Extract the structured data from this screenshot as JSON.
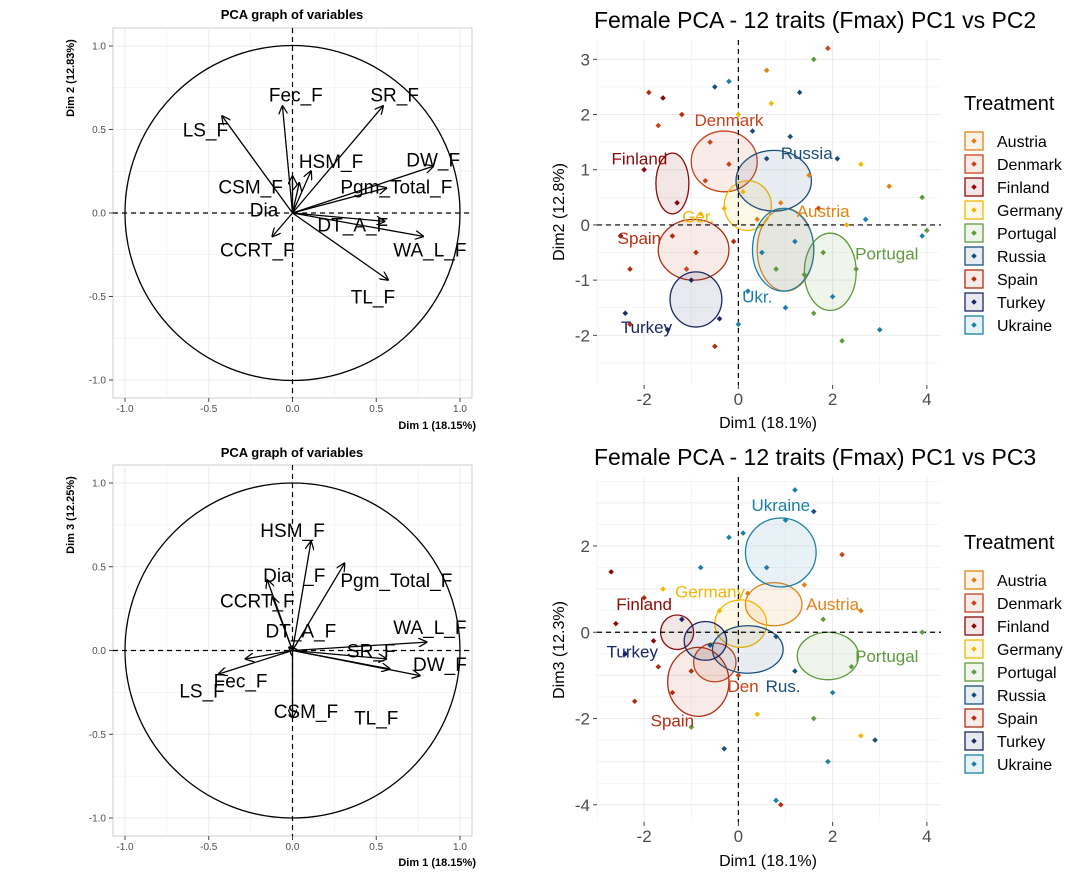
{
  "colors": {
    "Austria": "#E08214",
    "Denmark": "#C8421A",
    "Finland": "#8B0A0A",
    "Germany": "#F2B705",
    "Portugal": "#5F9A3C",
    "Russia": "#1A4E7A",
    "Spain": "#B22D12",
    "Turkey": "#1B2766",
    "Ukraine": "#1A7FA8"
  },
  "chart_data": [
    {
      "type": "vector",
      "title": "PCA graph of variables",
      "xlabel": "Dim 1 (18.15%)",
      "ylabel": "Dim 2 (12.83%)",
      "xlim": [
        -1.0,
        1.0
      ],
      "ylim": [
        -1.0,
        1.0
      ],
      "xticks": [
        "-1.0",
        "-0.5",
        "0.0",
        "0.5",
        "1.0"
      ],
      "yticks": [
        "-1.0",
        "-0.5",
        "0.0",
        "0.5",
        "1.0"
      ],
      "grid": true,
      "vectors": [
        {
          "name": "Fec_F",
          "x": -0.06,
          "y": 0.64
        },
        {
          "name": "SR_F",
          "x": 0.54,
          "y": 0.64
        },
        {
          "name": "LS_F",
          "x": -0.42,
          "y": 0.58
        },
        {
          "name": "HSM_F",
          "x": 0.11,
          "y": 0.25
        },
        {
          "name": "DW_F",
          "x": 0.84,
          "y": 0.28
        },
        {
          "name": "CSM_F",
          "x": 0.0,
          "y": 0.22
        },
        {
          "name": "Pgm_Total_F",
          "x": 0.56,
          "y": 0.15
        },
        {
          "name": "Dia_F",
          "x": 0.04,
          "y": 0.18
        },
        {
          "name": "DT_A_F",
          "x": 0.55,
          "y": -0.05
        },
        {
          "name": "CCRT_F",
          "x": -0.12,
          "y": -0.14
        },
        {
          "name": "WA_L_F",
          "x": 0.78,
          "y": -0.14
        },
        {
          "name": "TL_F",
          "x": 0.57,
          "y": -0.4
        }
      ],
      "labels": [
        {
          "text": "Fec_F",
          "x": 0.02,
          "y": 0.71
        },
        {
          "text": "SR_F",
          "x": 0.61,
          "y": 0.71
        },
        {
          "text": "LS_F",
          "x": -0.52,
          "y": 0.5
        },
        {
          "text": "HSM_F",
          "x": 0.23,
          "y": 0.31
        },
        {
          "text": "DW_F",
          "x": 0.84,
          "y": 0.32
        },
        {
          "text": "CSM_F",
          "x": -0.25,
          "y": 0.16
        },
        {
          "text": "Pgm_Total_F",
          "x": 0.62,
          "y": 0.16
        },
        {
          "text": "Dia",
          "x": -0.17,
          "y": 0.02
        },
        {
          "text": "DT_A_F",
          "x": 0.36,
          "y": -0.07
        },
        {
          "text": "CCRT_F",
          "x": -0.21,
          "y": -0.22
        },
        {
          "text": "WA_L_F",
          "x": 0.82,
          "y": -0.22
        },
        {
          "text": "TL_F",
          "x": 0.48,
          "y": -0.5
        }
      ]
    },
    {
      "type": "scatter",
      "title": "Female PCA - 12 traits (Fmax) PC1 vs PC2",
      "xlabel": "Dim1 (18.1%)",
      "ylabel": "Dim2 (12.8%)",
      "xlim": [
        -3.0,
        4.3
      ],
      "ylim": [
        -2.9,
        3.35
      ],
      "xticks": [
        -2,
        0,
        2,
        4
      ],
      "yticks": [
        -2,
        -1,
        0,
        1,
        2,
        3
      ],
      "legend_title": "Treatment",
      "legend_position": "right",
      "groups": [
        {
          "name": "Austria",
          "center": [
            1.0,
            -0.45
          ],
          "rx": 0.6,
          "ry": 0.75,
          "label": "Austria",
          "label_pos": [
            1.8,
            0.25
          ]
        },
        {
          "name": "Denmark",
          "center": [
            -0.3,
            1.15
          ],
          "rx": 0.7,
          "ry": 0.55,
          "label": "Denmark",
          "label_pos": [
            -0.2,
            1.9
          ]
        },
        {
          "name": "Finland",
          "center": [
            -1.4,
            0.75
          ],
          "rx": 0.35,
          "ry": 0.55,
          "label": "Finland",
          "label_pos": [
            -2.1,
            1.2
          ]
        },
        {
          "name": "Germany",
          "center": [
            0.2,
            0.35
          ],
          "rx": 0.5,
          "ry": 0.45,
          "label": "Ger.",
          "label_pos": [
            -0.85,
            0.15
          ]
        },
        {
          "name": "Portugal",
          "center": [
            1.95,
            -0.85
          ],
          "rx": 0.55,
          "ry": 0.7,
          "label": "Portugal",
          "label_pos": [
            3.15,
            -0.52
          ]
        },
        {
          "name": "Russia",
          "center": [
            0.75,
            0.8
          ],
          "rx": 0.8,
          "ry": 0.55,
          "label": "Russia",
          "label_pos": [
            1.45,
            1.3
          ]
        },
        {
          "name": "Spain",
          "center": [
            -0.95,
            -0.45
          ],
          "rx": 0.75,
          "ry": 0.55,
          "label": "Spain",
          "label_pos": [
            -2.1,
            -0.24
          ]
        },
        {
          "name": "Turkey",
          "center": [
            -0.9,
            -1.35
          ],
          "rx": 0.55,
          "ry": 0.5,
          "label": "Turkey",
          "label_pos": [
            -1.95,
            -1.85
          ]
        },
        {
          "name": "Ukraine",
          "center": [
            0.95,
            -0.45
          ],
          "rx": 0.65,
          "ry": 0.75,
          "label": "Ukr.",
          "label_pos": [
            0.4,
            -1.3
          ]
        }
      ],
      "points": [
        [
          -2.5,
          -0.2,
          "Finland"
        ],
        [
          -2.4,
          -1.6,
          "Turkey"
        ],
        [
          -2.3,
          -0.8,
          "Spain"
        ],
        [
          -2.0,
          1.0,
          "Finland"
        ],
        [
          -1.9,
          2.4,
          "Spain"
        ],
        [
          -1.7,
          1.8,
          "Denmark"
        ],
        [
          -1.5,
          -1.9,
          "Turkey"
        ],
        [
          -1.4,
          -0.2,
          "Spain"
        ],
        [
          -1.3,
          0.4,
          "Finland"
        ],
        [
          -1.2,
          2.0,
          "Spain"
        ],
        [
          -1.0,
          -1.0,
          "Turkey"
        ],
        [
          -0.9,
          -0.5,
          "Spain"
        ],
        [
          -0.8,
          0.2,
          "Germany"
        ],
        [
          -0.7,
          0.8,
          "Denmark"
        ],
        [
          -0.6,
          1.5,
          "Denmark"
        ],
        [
          -0.5,
          2.5,
          "Russia"
        ],
        [
          -0.4,
          -1.7,
          "Turkey"
        ],
        [
          -0.3,
          0.3,
          "Germany"
        ],
        [
          -0.2,
          1.1,
          "Denmark"
        ],
        [
          -0.1,
          -0.3,
          "Spain"
        ],
        [
          0.0,
          2.0,
          "Germany"
        ],
        [
          0.1,
          0.6,
          "Germany"
        ],
        [
          0.2,
          -1.2,
          "Ukraine"
        ],
        [
          0.3,
          1.7,
          "Russia"
        ],
        [
          0.4,
          0.1,
          "Austria"
        ],
        [
          0.5,
          -0.5,
          "Ukraine"
        ],
        [
          0.6,
          1.2,
          "Russia"
        ],
        [
          0.7,
          2.2,
          "Germany"
        ],
        [
          0.8,
          -0.8,
          "Portugal"
        ],
        [
          0.9,
          0.4,
          "Austria"
        ],
        [
          1.0,
          -1.5,
          "Ukraine"
        ],
        [
          1.1,
          1.6,
          "Russia"
        ],
        [
          1.2,
          -0.3,
          "Ukraine"
        ],
        [
          1.3,
          2.4,
          "Russia"
        ],
        [
          1.4,
          -0.9,
          "Portugal"
        ],
        [
          1.5,
          0.9,
          "Austria"
        ],
        [
          1.6,
          -1.6,
          "Portugal"
        ],
        [
          1.7,
          0.3,
          "Denmark"
        ],
        [
          1.8,
          -0.5,
          "Portugal"
        ],
        [
          1.9,
          3.2,
          "Denmark"
        ],
        [
          2.0,
          -1.3,
          "Ukraine"
        ],
        [
          2.1,
          1.2,
          "Russia"
        ],
        [
          2.2,
          -2.1,
          "Portugal"
        ],
        [
          2.3,
          0.0,
          "Germany"
        ],
        [
          2.5,
          -0.8,
          "Portugal"
        ],
        [
          2.7,
          0.1,
          "Ukraine"
        ],
        [
          3.0,
          -1.9,
          "Ukraine"
        ],
        [
          3.2,
          0.7,
          "Austria"
        ],
        [
          3.9,
          0.5,
          "Portugal"
        ],
        [
          4.0,
          -0.1,
          "Portugal"
        ],
        [
          3.9,
          -0.2,
          "Ukraine"
        ],
        [
          -2.3,
          -1.8,
          "Spain"
        ],
        [
          -1.6,
          2.3,
          "Finland"
        ],
        [
          -1.1,
          -0.8,
          "Denmark"
        ],
        [
          0.6,
          2.8,
          "Austria"
        ],
        [
          1.6,
          3.0,
          "Portugal"
        ],
        [
          -0.2,
          2.6,
          "Ukraine"
        ],
        [
          0.0,
          -1.8,
          "Ukraine"
        ],
        [
          -0.5,
          -2.2,
          "Spain"
        ],
        [
          2.6,
          1.1,
          "Germany"
        ]
      ]
    },
    {
      "type": "vector",
      "title": "PCA graph of variables",
      "xlabel": "Dim 1 (18.15%)",
      "ylabel": "Dim 3 (12.25%)",
      "xlim": [
        -1.0,
        1.0
      ],
      "ylim": [
        -1.0,
        1.0
      ],
      "xticks": [
        "-1.0",
        "-0.5",
        "0.0",
        "0.5",
        "1.0"
      ],
      "yticks": [
        "-1.0",
        "-0.5",
        "0.0",
        "0.5",
        "1.0"
      ],
      "grid": true,
      "vectors": [
        {
          "name": "HSM_F",
          "x": 0.11,
          "y": 0.65
        },
        {
          "name": "Dia_F",
          "x": -0.15,
          "y": 0.42
        },
        {
          "name": "Pgm_Total_F",
          "x": 0.31,
          "y": 0.52
        },
        {
          "name": "CCRT_F",
          "x": -0.12,
          "y": 0.32
        },
        {
          "name": "DT_A_F",
          "x": -0.02,
          "y": 0.02
        },
        {
          "name": "WA_L_F",
          "x": 0.8,
          "y": 0.05
        },
        {
          "name": "SR_F",
          "x": 0.56,
          "y": -0.05
        },
        {
          "name": "DW_F",
          "x": 0.76,
          "y": -0.15
        },
        {
          "name": "LS_F",
          "x": -0.44,
          "y": -0.14
        },
        {
          "name": "Fec_F",
          "x": -0.28,
          "y": -0.05
        },
        {
          "name": "CSM_F",
          "x": 0.0,
          "y": -0.4
        },
        {
          "name": "TL_F",
          "x": 0.58,
          "y": -0.11
        }
      ],
      "labels": [
        {
          "text": "HSM_F",
          "x": 0.0,
          "y": 0.72
        },
        {
          "text": "Dia",
          "x": -0.09,
          "y": 0.45
        },
        {
          "text": "_F",
          "x": 0.13,
          "y": 0.45
        },
        {
          "text": "Pgm_Total_F",
          "x": 0.62,
          "y": 0.42
        },
        {
          "text": "CCRT_F",
          "x": -0.21,
          "y": 0.3
        },
        {
          "text": "DT_A_F",
          "x": 0.05,
          "y": 0.12
        },
        {
          "text": "WA_L_F",
          "x": 0.82,
          "y": 0.14
        },
        {
          "text": "SR_F",
          "x": 0.47,
          "y": 0.0
        },
        {
          "text": "DW_F",
          "x": 0.88,
          "y": -0.08
        },
        {
          "text": "LS_F",
          "x": -0.54,
          "y": -0.24
        },
        {
          "text": "Fec_F",
          "x": -0.31,
          "y": -0.18
        },
        {
          "text": "CSM_F",
          "x": 0.08,
          "y": -0.36
        },
        {
          "text": "TL_F",
          "x": 0.5,
          "y": -0.4
        }
      ]
    },
    {
      "type": "scatter",
      "title": "Female PCA - 12 traits (Fmax) PC1 vs PC3",
      "xlabel": "Dim1 (18.1%)",
      "ylabel": "Dim3 (12.3%)",
      "xlim": [
        -3.0,
        4.3
      ],
      "ylim": [
        -4.4,
        3.6
      ],
      "xticks": [
        -2,
        0,
        2,
        4
      ],
      "yticks": [
        -4,
        -2,
        0,
        2
      ],
      "legend_title": "Treatment",
      "legend_position": "right",
      "groups": [
        {
          "name": "Austria",
          "center": [
            0.75,
            0.65
          ],
          "rx": 0.6,
          "ry": 0.5,
          "label": "Austria",
          "label_pos": [
            2.0,
            0.65
          ]
        },
        {
          "name": "Denmark",
          "center": [
            -0.5,
            -0.7
          ],
          "rx": 0.45,
          "ry": 0.45,
          "label": "Den",
          "label_pos": [
            0.1,
            -1.25
          ]
        },
        {
          "name": "Finland",
          "center": [
            -1.3,
            0.0
          ],
          "rx": 0.35,
          "ry": 0.4,
          "label": "Finland",
          "label_pos": [
            -2.0,
            0.65
          ]
        },
        {
          "name": "Germany",
          "center": [
            0.05,
            0.2
          ],
          "rx": 0.55,
          "ry": 0.55,
          "label": "Germany",
          "label_pos": [
            -0.6,
            0.95
          ]
        },
        {
          "name": "Portugal",
          "center": [
            1.9,
            -0.55
          ],
          "rx": 0.65,
          "ry": 0.55,
          "label": "Portugal",
          "label_pos": [
            3.15,
            -0.55
          ]
        },
        {
          "name": "Russia",
          "center": [
            0.2,
            -0.4
          ],
          "rx": 0.75,
          "ry": 0.55,
          "label": "Rus.",
          "label_pos": [
            0.95,
            -1.25
          ]
        },
        {
          "name": "Spain",
          "center": [
            -0.85,
            -1.15
          ],
          "rx": 0.65,
          "ry": 0.8,
          "label": "Spain",
          "label_pos": [
            -1.4,
            -2.05
          ]
        },
        {
          "name": "Turkey",
          "center": [
            -0.7,
            -0.2
          ],
          "rx": 0.45,
          "ry": 0.45,
          "label": "Turkey",
          "label_pos": [
            -2.25,
            -0.45
          ]
        },
        {
          "name": "Ukraine",
          "center": [
            0.9,
            1.85
          ],
          "rx": 0.75,
          "ry": 0.8,
          "label": "Ukraine",
          "label_pos": [
            0.9,
            2.95
          ]
        }
      ],
      "points": [
        [
          -2.7,
          1.4,
          "Finland"
        ],
        [
          -2.6,
          0.2,
          "Finland"
        ],
        [
          -2.4,
          -0.5,
          "Turkey"
        ],
        [
          -2.2,
          -1.6,
          "Spain"
        ],
        [
          -2.0,
          0.8,
          "Spain"
        ],
        [
          -1.8,
          -0.2,
          "Finland"
        ],
        [
          -1.6,
          1.0,
          "Germany"
        ],
        [
          -1.4,
          -1.4,
          "Spain"
        ],
        [
          -1.2,
          0.3,
          "Turkey"
        ],
        [
          -1.0,
          -0.9,
          "Spain"
        ],
        [
          -0.8,
          1.5,
          "Ukraine"
        ],
        [
          -0.6,
          -0.3,
          "Russia"
        ],
        [
          -0.4,
          0.5,
          "Germany"
        ],
        [
          -0.2,
          2.2,
          "Ukraine"
        ],
        [
          0.0,
          -1.0,
          "Denmark"
        ],
        [
          0.2,
          0.9,
          "Austria"
        ],
        [
          0.4,
          -1.9,
          "Germany"
        ],
        [
          0.6,
          1.5,
          "Ukraine"
        ],
        [
          0.8,
          -0.1,
          "Russia"
        ],
        [
          1.0,
          2.6,
          "Ukraine"
        ],
        [
          1.2,
          -0.9,
          "Russia"
        ],
        [
          1.4,
          1.1,
          "Austria"
        ],
        [
          1.6,
          -2.0,
          "Portugal"
        ],
        [
          1.8,
          0.3,
          "Portugal"
        ],
        [
          2.0,
          -1.4,
          "Ukraine"
        ],
        [
          2.2,
          1.8,
          "Denmark"
        ],
        [
          2.4,
          -0.8,
          "Portugal"
        ],
        [
          2.6,
          0.5,
          "Austria"
        ],
        [
          2.9,
          -2.5,
          "Russia"
        ],
        [
          3.9,
          0.0,
          "Portugal"
        ],
        [
          1.2,
          3.3,
          "Ukraine"
        ],
        [
          1.6,
          2.8,
          "Russia"
        ],
        [
          0.9,
          -4.0,
          "Spain"
        ],
        [
          0.8,
          -3.9,
          "Ukraine"
        ],
        [
          -1.0,
          -2.2,
          "Portugal"
        ],
        [
          -0.3,
          -2.7,
          "Russia"
        ],
        [
          2.6,
          -2.4,
          "Germany"
        ],
        [
          -1.7,
          -0.8,
          "Spain"
        ],
        [
          0.1,
          2.3,
          "Ukraine"
        ],
        [
          1.9,
          -3.0,
          "Ukraine"
        ]
      ]
    }
  ]
}
